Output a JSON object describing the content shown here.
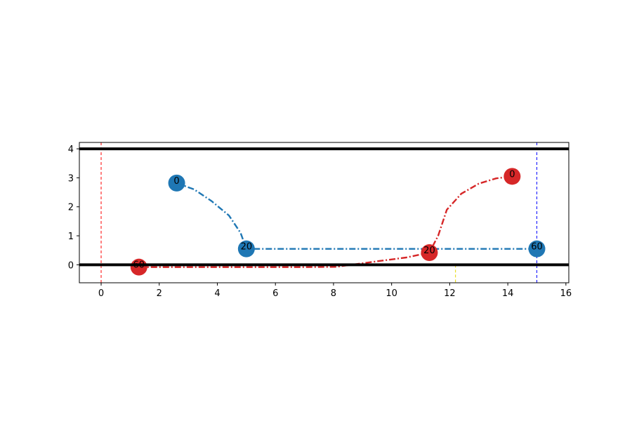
{
  "chart_data": {
    "type": "line",
    "title": "",
    "xlabel": "",
    "ylabel": "",
    "xlim": [
      -0.75,
      16.1
    ],
    "ylim": [
      -0.62,
      4.22
    ],
    "xticks": [
      0,
      2,
      4,
      6,
      8,
      10,
      12,
      14,
      16
    ],
    "yticks": [
      0,
      1,
      2,
      3,
      4
    ],
    "grid": false,
    "horizontal_lines": [
      {
        "y": 4,
        "color": "#000000",
        "width": "thick"
      },
      {
        "y": 0,
        "color": "#000000",
        "width": "thick"
      }
    ],
    "vertical_lines": [
      {
        "x": 0,
        "color": "#ff0000",
        "style": "dashed"
      },
      {
        "x": 15,
        "color": "#0000ff",
        "style": "dashed"
      },
      {
        "x": 12.2,
        "color": "#e6d800",
        "style": "dashed",
        "y_range": [
          -0.62,
          0.0
        ]
      }
    ],
    "series": [
      {
        "color": "#1f77b4",
        "style": "dashdot",
        "path": [
          [
            2.6,
            2.82
          ],
          [
            3.2,
            2.6
          ],
          [
            3.8,
            2.2
          ],
          [
            4.4,
            1.7
          ],
          [
            4.8,
            1.1
          ],
          [
            5.0,
            0.55
          ],
          [
            6,
            0.55
          ],
          [
            8,
            0.55
          ],
          [
            10,
            0.55
          ],
          [
            12,
            0.55
          ],
          [
            14,
            0.55
          ],
          [
            15,
            0.55
          ]
        ],
        "markers": [
          {
            "x": 2.6,
            "y": 2.82,
            "label": "0"
          },
          {
            "x": 5.0,
            "y": 0.55,
            "label": "20"
          },
          {
            "x": 15.0,
            "y": 0.55,
            "label": "60"
          }
        ]
      },
      {
        "color": "#d62728",
        "style": "dashdot",
        "path": [
          [
            1.3,
            -0.08
          ],
          [
            3,
            -0.08
          ],
          [
            5,
            -0.08
          ],
          [
            7,
            -0.08
          ],
          [
            8.1,
            -0.07
          ],
          [
            8.6,
            0.0
          ],
          [
            9.5,
            0.12
          ],
          [
            10.5,
            0.25
          ],
          [
            11.3,
            0.42
          ],
          [
            11.6,
            1.0
          ],
          [
            11.9,
            1.9
          ],
          [
            12.4,
            2.45
          ],
          [
            13.0,
            2.8
          ],
          [
            13.6,
            2.98
          ],
          [
            14.15,
            3.05
          ]
        ],
        "markers": [
          {
            "x": 14.15,
            "y": 3.05,
            "label": "0"
          },
          {
            "x": 11.3,
            "y": 0.42,
            "label": "20"
          },
          {
            "x": 1.3,
            "y": -0.08,
            "label": "60"
          }
        ]
      }
    ]
  }
}
